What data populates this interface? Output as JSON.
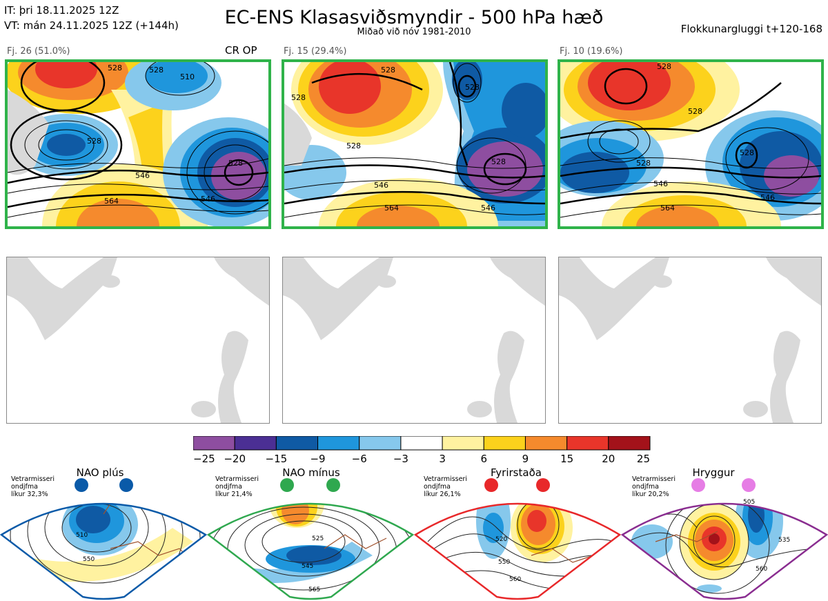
{
  "header": {
    "it_line": "IT: þri 18.11.2025 12Z",
    "vt_line": "VT: mán 24.11.2025 12Z  (+144h)",
    "title": "EC-ENS Klasasviðsmyndir - 500 hPa hæð",
    "subtitle": "Miðað við nóv 1981-2010",
    "window": "Flokkunargluggi t+120-168"
  },
  "clusters": [
    {
      "label": "Fj. 26 (51.0%)",
      "badge": "CR OP",
      "contours": [
        "510",
        "528",
        "528",
        "528",
        "528",
        "546",
        "546",
        "564"
      ]
    },
    {
      "label": "Fj. 15 (29.4%)",
      "badge": "",
      "contours": [
        "528",
        "528",
        "528",
        "528",
        "528",
        "546",
        "546",
        "564"
      ]
    },
    {
      "label": "Fj. 10 (19.6%)",
      "badge": "",
      "contours": [
        "528",
        "528",
        "528",
        "528",
        "546",
        "546",
        "564"
      ]
    }
  ],
  "chart_data": {
    "type": "heatmap",
    "title": "EC-ENS Klasasviðsmyndir - 500 hPa hæð",
    "colorbar": {
      "ticks": [
        "−25",
        "−20",
        "−15",
        "−9",
        "−6",
        "−3",
        "3",
        "6",
        "9",
        "15",
        "20",
        "25"
      ],
      "colors": [
        "#8e4ea0",
        "#4b2f94",
        "#0f5aa4",
        "#1f96dc",
        "#86c8ec",
        "#ffffff",
        "#fff2a0",
        "#fcd21c",
        "#f58a2d",
        "#e8352a",
        "#a3121a"
      ]
    },
    "clusters": [
      {
        "name": "Fj. 26",
        "percent": 51.0
      },
      {
        "name": "Fj. 15",
        "percent": 29.4
      },
      {
        "name": "Fj. 10",
        "percent": 19.6
      }
    ],
    "regimes": [
      {
        "name": "NAO plús",
        "note": [
          "Vetrarmisseri",
          "ondjfma",
          "líkur 32,3%"
        ],
        "contours": [
          "510",
          "550"
        ],
        "color": "#0a5aa8",
        "dots": 2
      },
      {
        "name": "NAO mínus",
        "note": [
          "Vetrarmisseri",
          "ondjfma",
          "líkur 21,4%"
        ],
        "contours": [
          "525",
          "545",
          "565"
        ],
        "color": "#2fa84f",
        "dots": 2
      },
      {
        "name": "Fyrirstaða",
        "note": [
          "Vetrarmisseri",
          "ondjfma",
          "líkur 26,1%"
        ],
        "contours": [
          "520",
          "550",
          "560"
        ],
        "color": "#e8282a",
        "dots": 2
      },
      {
        "name": "Hryggur",
        "note": [
          "Vetrarmisseri",
          "ondjfma",
          "líkur 20,2%"
        ],
        "contours": [
          "505",
          "535",
          "560"
        ],
        "color": "#8a2d90",
        "dots": 2
      }
    ]
  }
}
